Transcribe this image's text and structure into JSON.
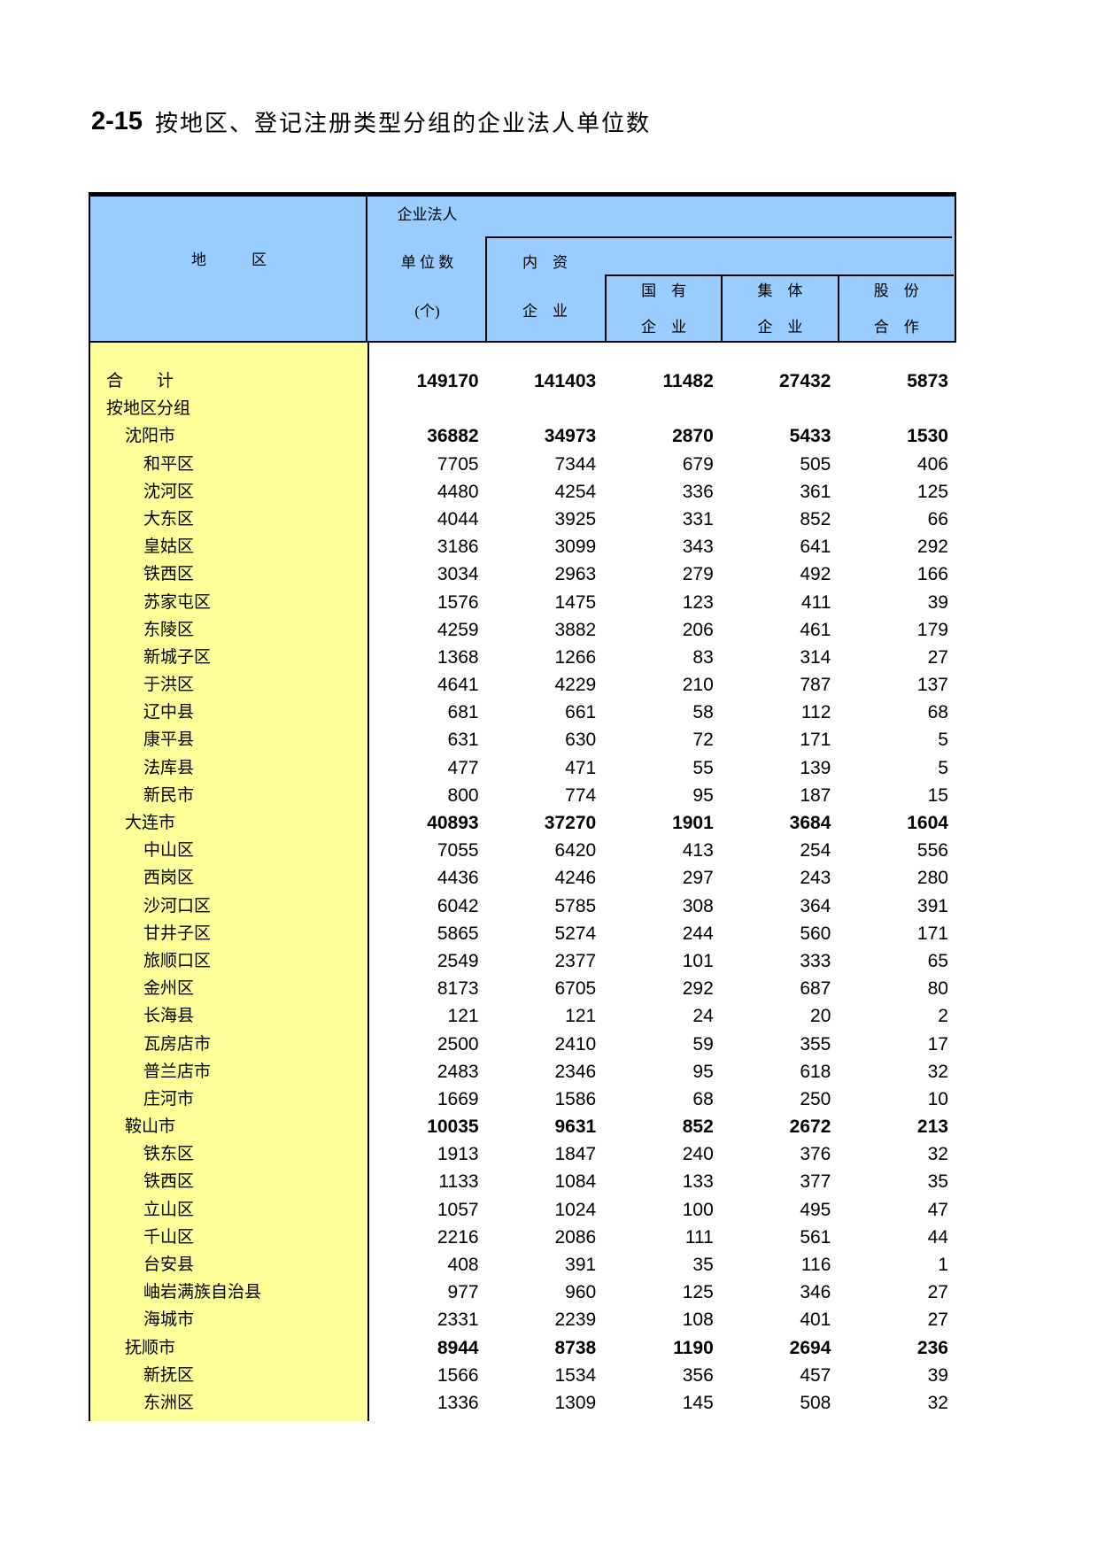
{
  "page": {
    "title_code": "2-15",
    "title_text": "按地区、登记注册类型分组的企业法人单位数"
  },
  "colors": {
    "header_bg": "#99CCFF",
    "region_bg": "#FFFF99",
    "border": "#000000"
  },
  "table": {
    "header": {
      "region": "地　　　区",
      "col_units": [
        "企业法人",
        "单 位 数",
        "(个)"
      ],
      "group_domestic": [
        "内　资",
        "企　业"
      ],
      "sub_state": [
        "国　有",
        "企　业"
      ],
      "sub_collective": [
        "集　体",
        "企　业"
      ],
      "sub_share": [
        "股　份",
        "合　作"
      ]
    },
    "rows": [
      {
        "name": "合　　计",
        "indent": 0,
        "bold": true,
        "values": [
          "149170",
          "141403",
          "11482",
          "27432",
          "5873"
        ]
      },
      {
        "name": "按地区分组",
        "indent": 0,
        "bold": false,
        "values": [
          "",
          "",
          "",
          "",
          ""
        ]
      },
      {
        "name": "沈阳市",
        "indent": 1,
        "bold": true,
        "values": [
          "36882",
          "34973",
          "2870",
          "5433",
          "1530"
        ]
      },
      {
        "name": "和平区",
        "indent": 2,
        "bold": false,
        "values": [
          "7705",
          "7344",
          "679",
          "505",
          "406"
        ]
      },
      {
        "name": "沈河区",
        "indent": 2,
        "bold": false,
        "values": [
          "4480",
          "4254",
          "336",
          "361",
          "125"
        ]
      },
      {
        "name": "大东区",
        "indent": 2,
        "bold": false,
        "values": [
          "4044",
          "3925",
          "331",
          "852",
          "66"
        ]
      },
      {
        "name": "皇姑区",
        "indent": 2,
        "bold": false,
        "values": [
          "3186",
          "3099",
          "343",
          "641",
          "292"
        ]
      },
      {
        "name": "铁西区",
        "indent": 2,
        "bold": false,
        "values": [
          "3034",
          "2963",
          "279",
          "492",
          "166"
        ]
      },
      {
        "name": "苏家屯区",
        "indent": 2,
        "bold": false,
        "values": [
          "1576",
          "1475",
          "123",
          "411",
          "39"
        ]
      },
      {
        "name": "东陵区",
        "indent": 2,
        "bold": false,
        "values": [
          "4259",
          "3882",
          "206",
          "461",
          "179"
        ]
      },
      {
        "name": "新城子区",
        "indent": 2,
        "bold": false,
        "values": [
          "1368",
          "1266",
          "83",
          "314",
          "27"
        ]
      },
      {
        "name": "于洪区",
        "indent": 2,
        "bold": false,
        "values": [
          "4641",
          "4229",
          "210",
          "787",
          "137"
        ]
      },
      {
        "name": "辽中县",
        "indent": 2,
        "bold": false,
        "values": [
          "681",
          "661",
          "58",
          "112",
          "68"
        ]
      },
      {
        "name": "康平县",
        "indent": 2,
        "bold": false,
        "values": [
          "631",
          "630",
          "72",
          "171",
          "5"
        ]
      },
      {
        "name": "法库县",
        "indent": 2,
        "bold": false,
        "values": [
          "477",
          "471",
          "55",
          "139",
          "5"
        ]
      },
      {
        "name": "新民市",
        "indent": 2,
        "bold": false,
        "values": [
          "800",
          "774",
          "95",
          "187",
          "15"
        ]
      },
      {
        "name": "大连市",
        "indent": 1,
        "bold": true,
        "values": [
          "40893",
          "37270",
          "1901",
          "3684",
          "1604"
        ]
      },
      {
        "name": "中山区",
        "indent": 2,
        "bold": false,
        "values": [
          "7055",
          "6420",
          "413",
          "254",
          "556"
        ]
      },
      {
        "name": "西岗区",
        "indent": 2,
        "bold": false,
        "values": [
          "4436",
          "4246",
          "297",
          "243",
          "280"
        ]
      },
      {
        "name": "沙河口区",
        "indent": 2,
        "bold": false,
        "values": [
          "6042",
          "5785",
          "308",
          "364",
          "391"
        ]
      },
      {
        "name": "甘井子区",
        "indent": 2,
        "bold": false,
        "values": [
          "5865",
          "5274",
          "244",
          "560",
          "171"
        ]
      },
      {
        "name": "旅顺口区",
        "indent": 2,
        "bold": false,
        "values": [
          "2549",
          "2377",
          "101",
          "333",
          "65"
        ]
      },
      {
        "name": "金州区",
        "indent": 2,
        "bold": false,
        "values": [
          "8173",
          "6705",
          "292",
          "687",
          "80"
        ]
      },
      {
        "name": "长海县",
        "indent": 2,
        "bold": false,
        "values": [
          "121",
          "121",
          "24",
          "20",
          "2"
        ]
      },
      {
        "name": "瓦房店市",
        "indent": 2,
        "bold": false,
        "values": [
          "2500",
          "2410",
          "59",
          "355",
          "17"
        ]
      },
      {
        "name": "普兰店市",
        "indent": 2,
        "bold": false,
        "values": [
          "2483",
          "2346",
          "95",
          "618",
          "32"
        ]
      },
      {
        "name": "庄河市",
        "indent": 2,
        "bold": false,
        "values": [
          "1669",
          "1586",
          "68",
          "250",
          "10"
        ]
      },
      {
        "name": "鞍山市",
        "indent": 1,
        "bold": true,
        "values": [
          "10035",
          "9631",
          "852",
          "2672",
          "213"
        ]
      },
      {
        "name": "铁东区",
        "indent": 2,
        "bold": false,
        "values": [
          "1913",
          "1847",
          "240",
          "376",
          "32"
        ]
      },
      {
        "name": "铁西区",
        "indent": 2,
        "bold": false,
        "values": [
          "1133",
          "1084",
          "133",
          "377",
          "35"
        ]
      },
      {
        "name": "立山区",
        "indent": 2,
        "bold": false,
        "values": [
          "1057",
          "1024",
          "100",
          "495",
          "47"
        ]
      },
      {
        "name": "千山区",
        "indent": 2,
        "bold": false,
        "values": [
          "2216",
          "2086",
          "111",
          "561",
          "44"
        ]
      },
      {
        "name": "台安县",
        "indent": 2,
        "bold": false,
        "values": [
          "408",
          "391",
          "35",
          "116",
          "1"
        ]
      },
      {
        "name": "岫岩满族自治县",
        "indent": 2,
        "bold": false,
        "values": [
          "977",
          "960",
          "125",
          "346",
          "27"
        ]
      },
      {
        "name": "海城市",
        "indent": 2,
        "bold": false,
        "values": [
          "2331",
          "2239",
          "108",
          "401",
          "27"
        ]
      },
      {
        "name": "抚顺市",
        "indent": 1,
        "bold": true,
        "values": [
          "8944",
          "8738",
          "1190",
          "2694",
          "236"
        ]
      },
      {
        "name": "新抚区",
        "indent": 2,
        "bold": false,
        "values": [
          "1566",
          "1534",
          "356",
          "457",
          "39"
        ]
      },
      {
        "name": "东洲区",
        "indent": 2,
        "bold": false,
        "values": [
          "1336",
          "1309",
          "145",
          "508",
          "32"
        ]
      }
    ]
  }
}
